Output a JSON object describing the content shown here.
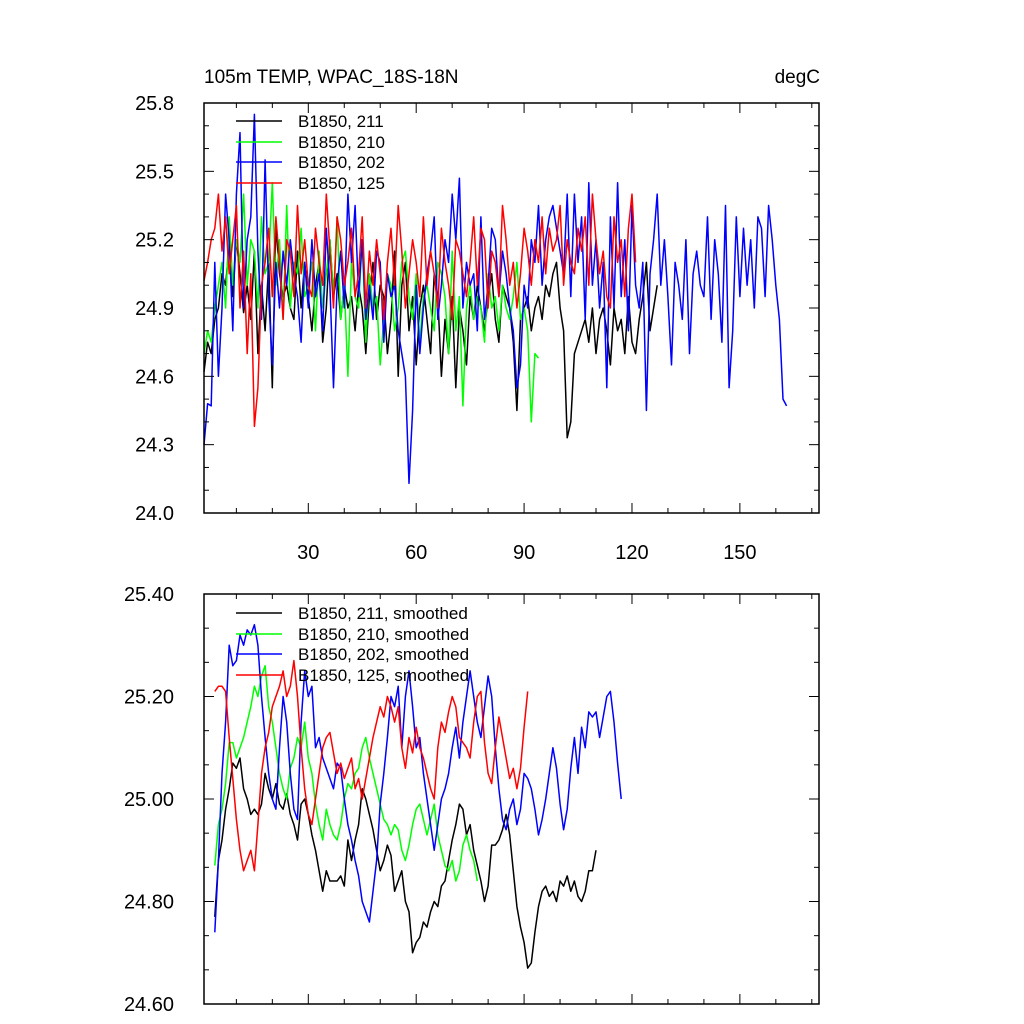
{
  "chart_data": [
    {
      "type": "line",
      "title": "105m TEMP, WPAC_18S-18N",
      "units": "degC",
      "xlim": [
        1,
        172
      ],
      "ylim": [
        24.0,
        25.8
      ],
      "x_ticks": [
        30,
        60,
        90,
        120,
        150
      ],
      "y_ticks": [
        "24.0",
        "24.3",
        "24.6",
        "24.9",
        "25.2",
        "25.5",
        "25.8"
      ],
      "legend_position": "top-left",
      "series": [
        {
          "name": "B1850, 211",
          "color": "#000000",
          "values": [
            24.62,
            24.75,
            24.7,
            24.85,
            24.9,
            25.05,
            25.0,
            25.18,
            24.95,
            25.2,
            25.05,
            24.88,
            25.0,
            24.85,
            25.15,
            24.7,
            25.0,
            24.8,
            25.1,
            24.55,
            25.27,
            25.05,
            24.95,
            25.0,
            24.9,
            24.85,
            25.15,
            24.9,
            25.1,
            24.95,
            24.8,
            25.0,
            25.1,
            24.75,
            24.9,
            25.2,
            24.95,
            25.05,
            24.85,
            25.0,
            24.9,
            24.95,
            24.8,
            25.0,
            24.9,
            24.7,
            24.95,
            25.1,
            24.85,
            25.0,
            24.95,
            24.7,
            24.85,
            25.15,
            24.6,
            25.0,
            25.1,
            24.8,
            24.95,
            24.65,
            24.9,
            25.0,
            24.85,
            24.7,
            25.05,
            24.95,
            24.6,
            24.85,
            24.7,
            24.95,
            24.55,
            24.9,
            24.8,
            24.65,
            24.95,
            24.85,
            25.0,
            24.9,
            24.8,
            24.95,
            25.05,
            24.85,
            24.75,
            25.0,
            24.95,
            24.9,
            24.75,
            24.45,
            24.85,
            24.9,
            24.95,
            24.8,
            24.9,
            24.95,
            24.85,
            25.0,
            24.95,
            25.05,
            25.1,
            24.9,
            24.8,
            24.33,
            24.4,
            24.7,
            24.75,
            24.8,
            24.85,
            24.75,
            24.9,
            24.7,
            24.85,
            24.9,
            24.8,
            24.65,
            24.9,
            24.8,
            24.85,
            24.7,
            24.95,
            24.75,
            24.7,
            24.85,
            24.95,
            25.1,
            24.8,
            24.9,
            25.0
          ]
        },
        {
          "name": "B1850, 210",
          "color": "#00ff00",
          "values": [
            24.7,
            24.8,
            24.75,
            24.9,
            25.0,
            25.1,
            24.9,
            25.3,
            25.0,
            25.2,
            25.1,
            25.4,
            25.0,
            25.2,
            25.15,
            24.9,
            25.3,
            25.05,
            25.1,
            25.45,
            25.0,
            25.2,
            24.85,
            25.35,
            24.9,
            25.1,
            25.05,
            25.25,
            24.95,
            25.0,
            25.1,
            24.8,
            25.15,
            24.9,
            25.05,
            25.2,
            24.95,
            25.3,
            24.85,
            25.0,
            24.6,
            25.1,
            24.95,
            24.9,
            25.2,
            24.75,
            25.05,
            24.9,
            24.95,
            24.65,
            24.85,
            25.05,
            25.0,
            24.8,
            24.9,
            25.1,
            25.15,
            24.95,
            24.85,
            25.05,
            24.75,
            24.95,
            25.0,
            24.9,
            24.8,
            25.1,
            25.05,
            24.95,
            24.7,
            25.15,
            24.8,
            24.95,
            24.47,
            24.9,
            25.0,
            24.85,
            24.95,
            24.9,
            24.75,
            25.05,
            24.9,
            24.95,
            24.8,
            25.0,
            24.9,
            24.85,
            24.95,
            25.1,
            24.85,
            24.9,
            24.8,
            24.4,
            24.7,
            24.68
          ]
        },
        {
          "name": "B1850, 202",
          "color": "#0000ff",
          "values": [
            24.3,
            24.48,
            24.47,
            25.1,
            24.6,
            24.9,
            25.4,
            25.2,
            24.8,
            25.4,
            25.67,
            24.9,
            25.2,
            25.3,
            25.75,
            25.15,
            24.85,
            25.55,
            24.95,
            24.65,
            25.1,
            24.9,
            25.15,
            25.0,
            25.2,
            25.05,
            24.95,
            24.75,
            25.1,
            24.9,
            25.2,
            24.95,
            25.05,
            24.8,
            25.25,
            25.0,
            24.55,
            25.0,
            25.15,
            24.9,
            25.4,
            25.1,
            25.35,
            24.95,
            25.2,
            24.85,
            25.0,
            24.85,
            25.15,
            25.1,
            24.75,
            25.05,
            24.95,
            25.0,
            24.8,
            24.7,
            24.6,
            24.13,
            24.45,
            25.0,
            24.7,
            24.9,
            25.05,
            25.15,
            25.3,
            24.85,
            25.0,
            25.2,
            25.1,
            25.4,
            25.2,
            25.47,
            24.9,
            25.1,
            25.0,
            25.05,
            24.8,
            25.3,
            24.85,
            25.0,
            25.25,
            25.2,
            24.95,
            25.15,
            25.05,
            24.9,
            24.8,
            24.55,
            24.65,
            25.0,
            24.9,
            25.2,
            25.1,
            25.35,
            25.0,
            25.2,
            25.3,
            25.35,
            25.25,
            25.15,
            25.05,
            25.4,
            24.95,
            25.4,
            25.1,
            25.3,
            24.85,
            25.45,
            25.0,
            25.2,
            24.9,
            25.1,
            24.55,
            25.3,
            24.9,
            25.45,
            24.95,
            25.2,
            24.8,
            25.35,
            25.0,
            24.9,
            25.1,
            24.45,
            25.05,
            25.2,
            25.4,
            25.0,
            25.2,
            24.95,
            24.65,
            25.1,
            25.0,
            24.85,
            25.2,
            24.7,
            25.05,
            25.15,
            25.0,
            24.95,
            25.3,
            24.85,
            25.2,
            25.05,
            24.75,
            25.35,
            24.55,
            24.8,
            25.3,
            24.95,
            25.25,
            25.0,
            25.2,
            24.9,
            25.3,
            25.25,
            24.95,
            25.35,
            25.2,
            25.0,
            24.85,
            24.5,
            24.47
          ]
        },
        {
          "name": "B1850, 125",
          "color": "#ff0000",
          "values": [
            25.02,
            25.1,
            25.2,
            25.25,
            25.4,
            25.15,
            25.3,
            25.05,
            25.2,
            25.35,
            24.9,
            25.15,
            24.7,
            25.05,
            24.38,
            24.55,
            25.0,
            25.1,
            25.25,
            24.95,
            25.3,
            25.1,
            24.85,
            25.2,
            25.15,
            24.95,
            25.35,
            25.05,
            25.2,
            25.0,
            24.95,
            25.25,
            25.1,
            25.0,
            25.4,
            25.15,
            24.9,
            25.3,
            25.2,
            25.0,
            25.1,
            25.25,
            24.95,
            25.05,
            25.3,
            24.9,
            25.15,
            25.0,
            25.2,
            25.05,
            24.85,
            25.1,
            25.25,
            25.0,
            25.35,
            25.15,
            24.9,
            25.05,
            25.2,
            25.1,
            24.95,
            25.3,
            25.0,
            25.15,
            25.05,
            24.9,
            25.25,
            25.1,
            25.0,
            24.85,
            25.2,
            25.15,
            25.05,
            24.95,
            25.1,
            25.3,
            25.0,
            25.25,
            25.2,
            24.9,
            25.15,
            25.1,
            24.95,
            25.35,
            25.2,
            25.0,
            25.1,
            24.9,
            25.05,
            25.25,
            25.15,
            25.0,
            25.2,
            25.1,
            25.3,
            25.05,
            25.25,
            25.15,
            25.2,
            25.35,
            25.0,
            25.2,
            25.1,
            25.05,
            25.25,
            25.15,
            25.3,
            25.0,
            25.4,
            25.2,
            25.05,
            25.15,
            24.95,
            24.9,
            25.3,
            25.1,
            25.2,
            24.95,
            25.25,
            25.4,
            25.1
          ]
        }
      ]
    },
    {
      "type": "line",
      "ylim": [
        24.6,
        25.4
      ],
      "y_ticks": [
        "24.60",
        "24.80",
        "25.00",
        "25.20",
        "25.40"
      ],
      "legend_position": "top-left",
      "series": [
        {
          "name": "B1850, 211, smoothed",
          "color": "#000000",
          "x_start": 4,
          "values": [
            24.77,
            24.88,
            24.92,
            24.98,
            25.02,
            25.07,
            25.06,
            25.08,
            25.02,
            25.0,
            24.97,
            24.98,
            24.97,
            24.99,
            25.05,
            25.02,
            25.0,
            25.03,
            24.99,
            24.98,
            25.01,
            24.97,
            24.95,
            24.92,
            24.99,
            25.0,
            24.97,
            24.93,
            24.9,
            24.86,
            24.82,
            24.86,
            24.84,
            24.84,
            24.84,
            24.85,
            24.83,
            24.92,
            24.88,
            24.92,
            24.95,
            25.02,
            25.0,
            24.97,
            24.94,
            24.9,
            24.86,
            24.88,
            24.91,
            24.89,
            24.82,
            24.84,
            24.86,
            24.8,
            24.78,
            24.7,
            24.72,
            24.73,
            24.76,
            24.75,
            24.78,
            24.8,
            24.79,
            24.83,
            24.84,
            24.88,
            24.92,
            24.95,
            24.99,
            24.98,
            24.93,
            24.95,
            24.9,
            24.87,
            24.84,
            24.8,
            24.83,
            24.91,
            24.91,
            24.92,
            24.94,
            24.97,
            24.93,
            24.86,
            24.79,
            24.75,
            24.72,
            24.67,
            24.68,
            24.74,
            24.79,
            24.82,
            24.83,
            24.81,
            24.82,
            24.8,
            24.84,
            24.83,
            24.85,
            24.82,
            24.84,
            24.81,
            24.8,
            24.82,
            24.86,
            24.86,
            24.9
          ]
        },
        {
          "name": "B1850, 210, smoothed",
          "color": "#00ff00",
          "x_start": 4,
          "values": [
            24.87,
            24.95,
            24.98,
            25.03,
            25.11,
            25.11,
            25.08,
            25.1,
            25.12,
            25.15,
            25.18,
            25.22,
            25.2,
            25.24,
            25.26,
            25.18,
            25.15,
            25.1,
            25.05,
            25.02,
            25.0,
            25.06,
            25.08,
            25.12,
            25.1,
            25.15,
            25.08,
            25.05,
            24.99,
            24.95,
            24.92,
            24.98,
            24.95,
            24.93,
            24.92,
            24.95,
            25.0,
            25.03,
            25.02,
            25.05,
            25.06,
            25.1,
            25.12,
            25.08,
            25.05,
            25.02,
            24.99,
            24.96,
            24.95,
            24.93,
            24.95,
            24.94,
            24.9,
            24.88,
            24.91,
            24.95,
            24.98,
            24.99,
            24.96,
            24.93,
            24.96,
            24.99,
            24.93,
            24.9,
            24.87,
            24.86,
            24.88,
            24.84,
            24.86,
            24.91,
            24.93,
            24.9,
            24.88,
            24.84
          ]
        },
        {
          "name": "B1850, 202, smoothed",
          "color": "#0000ff",
          "x_start": 4,
          "values": [
            24.74,
            24.88,
            25.05,
            25.15,
            25.3,
            25.26,
            25.27,
            25.32,
            25.3,
            25.33,
            25.32,
            25.34,
            25.3,
            25.2,
            25.12,
            25.05,
            25.0,
            24.98,
            25.1,
            25.2,
            25.15,
            25.05,
            24.98,
            24.96,
            25.15,
            25.25,
            25.2,
            25.22,
            25.1,
            25.12,
            25.08,
            25.06,
            25.04,
            25.02,
            25.07,
            25.06,
            25.0,
            24.95,
            24.92,
            24.88,
            24.85,
            24.8,
            24.78,
            24.76,
            24.82,
            24.88,
            24.99,
            25.05,
            25.12,
            25.2,
            25.18,
            25.22,
            25.1,
            25.2,
            25.25,
            25.18,
            25.1,
            25.12,
            25.05,
            25.0,
            24.95,
            24.9,
            24.95,
            25.0,
            25.02,
            25.05,
            25.1,
            25.14,
            25.08,
            25.15,
            25.2,
            25.25,
            25.2,
            25.15,
            25.12,
            25.18,
            25.24,
            25.2,
            25.1,
            25.02,
            24.96,
            24.94,
            24.98,
            25.0,
            24.95,
            24.98,
            25.05,
            25.04,
            25.02,
            24.98,
            24.93,
            24.96,
            25.0,
            25.05,
            25.1,
            25.06,
            24.99,
            24.94,
            24.98,
            25.06,
            25.12,
            25.05,
            25.14,
            25.1,
            25.17,
            25.16,
            25.17,
            25.12,
            25.16,
            25.2,
            25.21,
            25.15,
            25.07,
            25.0
          ]
        },
        {
          "name": "B1850, 125, smoothed",
          "color": "#ff0000",
          "x_start": 4,
          "values": [
            25.21,
            25.22,
            25.22,
            25.21,
            25.12,
            25.04,
            24.96,
            24.9,
            24.86,
            24.88,
            24.9,
            24.86,
            24.95,
            25.05,
            25.1,
            25.13,
            25.18,
            25.2,
            25.22,
            25.25,
            25.2,
            25.22,
            25.27,
            25.2,
            25.1,
            25.02,
            24.97,
            24.95,
            25.0,
            25.05,
            25.1,
            25.12,
            25.13,
            25.09,
            25.05,
            25.07,
            25.04,
            25.06,
            25.08,
            25.02,
            25.04,
            25.0,
            25.04,
            25.08,
            25.12,
            25.15,
            25.18,
            25.16,
            25.2,
            25.18,
            25.15,
            25.18,
            25.1,
            25.06,
            25.12,
            25.09,
            25.14,
            25.1,
            25.08,
            25.05,
            25.02,
            25.0,
            25.1,
            25.15,
            25.13,
            25.17,
            25.2,
            25.18,
            25.12,
            25.11,
            25.1,
            25.08,
            25.15,
            25.2,
            25.21,
            25.11,
            25.05,
            25.03,
            25.1,
            25.16,
            25.12,
            25.08,
            25.04,
            25.06,
            25.02,
            25.06,
            25.14,
            25.21
          ]
        }
      ]
    }
  ]
}
